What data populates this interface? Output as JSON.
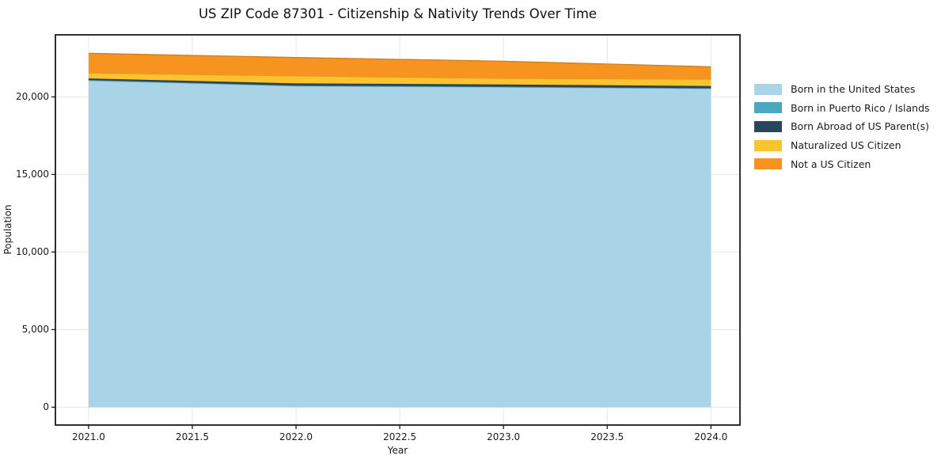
{
  "title": "US ZIP Code 87301 - Citizenship & Nativity Trends Over Time",
  "chart_data": {
    "type": "area",
    "stacked": true,
    "title": "US ZIP Code 87301 - Citizenship & Nativity Trends Over Time",
    "xlabel": "Year",
    "ylabel": "Population",
    "x": [
      2021,
      2022,
      2023,
      2024
    ],
    "series": [
      {
        "name": "Born in the United States",
        "color": "#a9d3e6",
        "values": [
          21050,
          20700,
          20630,
          20530
        ]
      },
      {
        "name": "Born in Puerto Rico / Islands",
        "color": "#4ba7c4",
        "values": [
          40,
          30,
          30,
          30
        ]
      },
      {
        "name": "Born Abroad of US Parent(s)",
        "color": "#28475c",
        "values": [
          100,
          140,
          140,
          140
        ]
      },
      {
        "name": "Naturalized US Citizen",
        "color": "#fcc230",
        "values": [
          350,
          480,
          390,
          440
        ]
      },
      {
        "name": "Not a US Citizen",
        "color": "#f79420",
        "values": [
          1270,
          1190,
          1110,
          800
        ]
      }
    ],
    "xticks": [
      2021.0,
      2021.5,
      2022.0,
      2022.5,
      2023.0,
      2023.5,
      2024.0
    ],
    "yticks": [
      0,
      5000,
      10000,
      15000,
      20000
    ],
    "xlim": [
      2020.84,
      2024.14
    ],
    "ylim": [
      -1150,
      24000
    ],
    "grid": true,
    "grid_color": "#e6e6e6",
    "spine_color": "#1a1a1a",
    "background": "#ffffff",
    "legend_position": "right-outside"
  }
}
